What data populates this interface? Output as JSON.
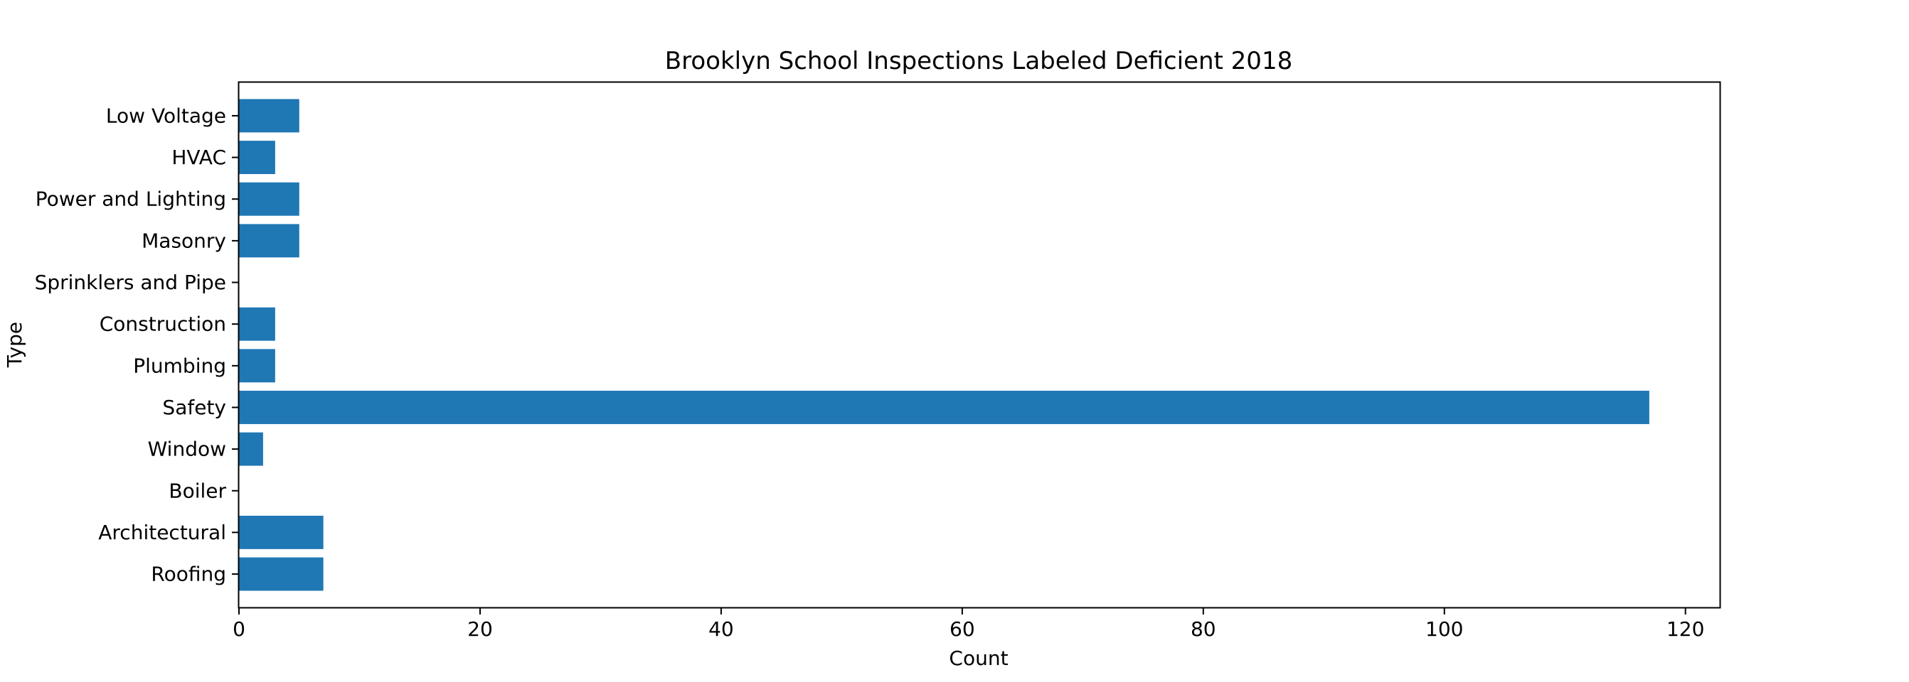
{
  "chart_data": {
    "type": "bar",
    "orientation": "horizontal",
    "title": "Brooklyn School Inspections Labeled Deficient 2018",
    "xlabel": "Count",
    "ylabel": "Type",
    "categories": [
      "Roofing",
      "Architectural",
      "Boiler",
      "Window",
      "Safety",
      "Plumbing",
      "Construction",
      "Sprinklers and Pipe",
      "Masonry",
      "Power and Lighting",
      "HVAC",
      "Low Voltage"
    ],
    "values": [
      7,
      7,
      0,
      2,
      117,
      3,
      3,
      0,
      5,
      5,
      3,
      5
    ],
    "xlim": [
      0,
      122.85
    ],
    "xticks": [
      0,
      20,
      40,
      60,
      80,
      100,
      120
    ],
    "xtick_labels": [
      "0",
      "20",
      "40",
      "60",
      "80",
      "100",
      "120"
    ],
    "grid": false,
    "bar_color": "#1f77b4"
  }
}
